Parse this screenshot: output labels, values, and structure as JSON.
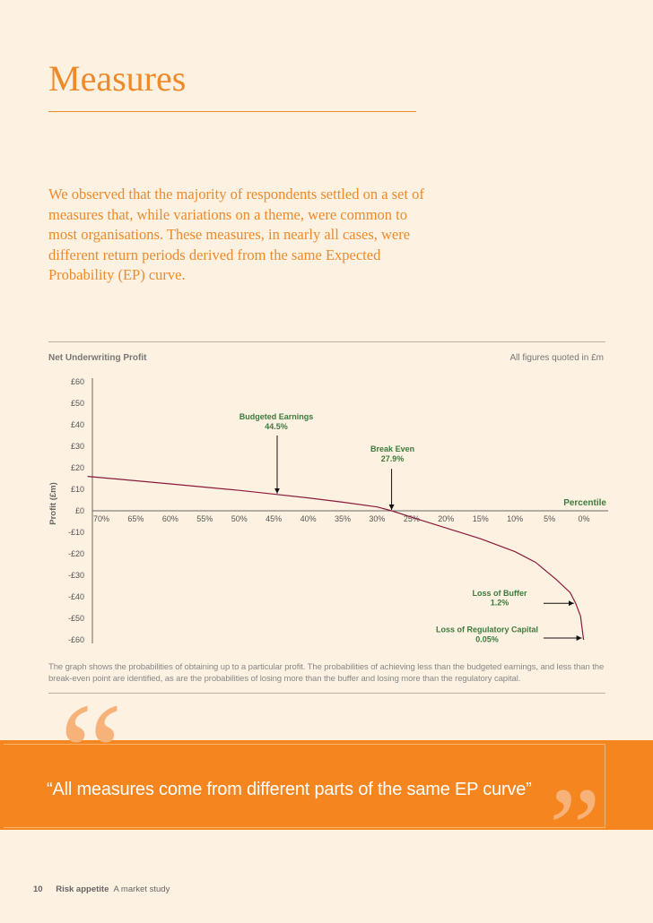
{
  "page": {
    "title": "Measures",
    "intro": "We observed that the majority of respondents settled on a set of measures that, while variations on a theme, were common to most organisations. These measures, in nearly all cases, were different return periods derived from the same Expected Probability (EP) curve.",
    "caption": "The graph shows the probabilities of obtaining up to a particular profit. The probabilities of achieving less than the budgeted earnings, and less than the break-even point are identified, as are the probabilities of losing more than the buffer and losing more than the regulatory capital.",
    "quote": "“All measures come from different parts of the same EP curve”",
    "quote_open_mark": "“",
    "quote_close_mark": "”",
    "footer": {
      "page_number": "10",
      "title_bold": "Risk appetite",
      "title_rest": "A market study"
    },
    "colors": {
      "accent": "#ef8a2a",
      "band": "#f5861f",
      "curve": "#8b1a3c",
      "annotation": "#3d7a3d"
    }
  },
  "chart_data": {
    "type": "line",
    "title": "Net Underwriting Profit",
    "note": "All figures quoted in £m",
    "ylabel": "Profit (£m)",
    "xlabel": "Percentile",
    "y_ticks": [
      "£60",
      "£50",
      "£40",
      "£30",
      "£20",
      "£10",
      "£0",
      "-£10",
      "-£20",
      "-£30",
      "-£40",
      "-£50",
      "-£60"
    ],
    "ylim": [
      -60,
      60
    ],
    "x_ticks": [
      "70%",
      "65%",
      "60%",
      "55%",
      "50%",
      "45%",
      "40%",
      "35%",
      "30%",
      "25%",
      "20%",
      "15%",
      "10%",
      "5%",
      "0%"
    ],
    "xlim": [
      72,
      0
    ],
    "series": [
      {
        "x": [
          72,
          60,
          50,
          44.5,
          40,
          35,
          30,
          27.9,
          25,
          20,
          15,
          10,
          7,
          4,
          2,
          1.2,
          0.5,
          0.05
        ],
        "y": [
          16,
          12.5,
          9.5,
          7.6,
          6,
          4,
          1.8,
          0,
          -3,
          -8,
          -13,
          -19,
          -24,
          -32,
          -38,
          -43,
          -49,
          -60
        ]
      }
    ],
    "annotations": [
      {
        "label": "Budgeted Earnings",
        "value": "44.5%",
        "x": 44.5,
        "y": 7.6,
        "arrow": "down"
      },
      {
        "label": "Break Even",
        "value": "27.9%",
        "x": 27.9,
        "y": 0,
        "arrow": "down"
      },
      {
        "label": "Loss of Buffer",
        "value": "1.2%",
        "x": 1.2,
        "y": -43,
        "arrow": "right"
      },
      {
        "label": "Loss of Regulatory Capital",
        "value": "0.05%",
        "x": 0.05,
        "y": -60,
        "arrow": "right"
      }
    ],
    "grid": false
  }
}
